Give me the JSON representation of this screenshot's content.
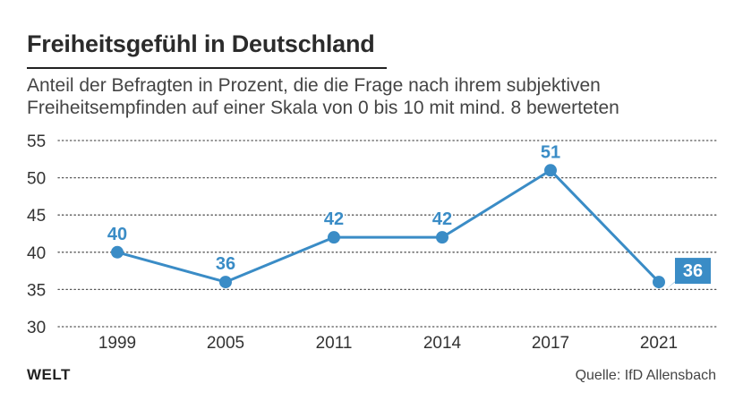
{
  "header": {
    "title": "Freiheitsgefühl in Deutschland",
    "subtitle_line1": "Anteil der Befragten in Prozent, die die Frage nach ihrem subjektiven",
    "subtitle_line2": "Freiheitsempfinden auf einer Skala von 0 bis 10 mit mind. 8 bewerteten"
  },
  "footer": {
    "logo": "WELT",
    "source": "Quelle: IfD Allensbach"
  },
  "colors": {
    "series": "#3a8cc6",
    "grid": "#555555",
    "text": "#333333"
  },
  "chart_data": {
    "type": "line",
    "title": "Freiheitsgefühl in Deutschland",
    "x": [
      "1999",
      "2005",
      "2011",
      "2014",
      "2017",
      "2021"
    ],
    "series": [
      {
        "values": [
          40,
          36,
          42,
          42,
          51,
          36
        ]
      }
    ],
    "data_labels": [
      "40",
      "36",
      "42",
      "42",
      "51",
      "36"
    ],
    "y_ticks": [
      30,
      35,
      40,
      45,
      50,
      55
    ],
    "ylim": [
      30,
      55
    ],
    "grid": "dotted horizontal",
    "highlight_last": true
  }
}
